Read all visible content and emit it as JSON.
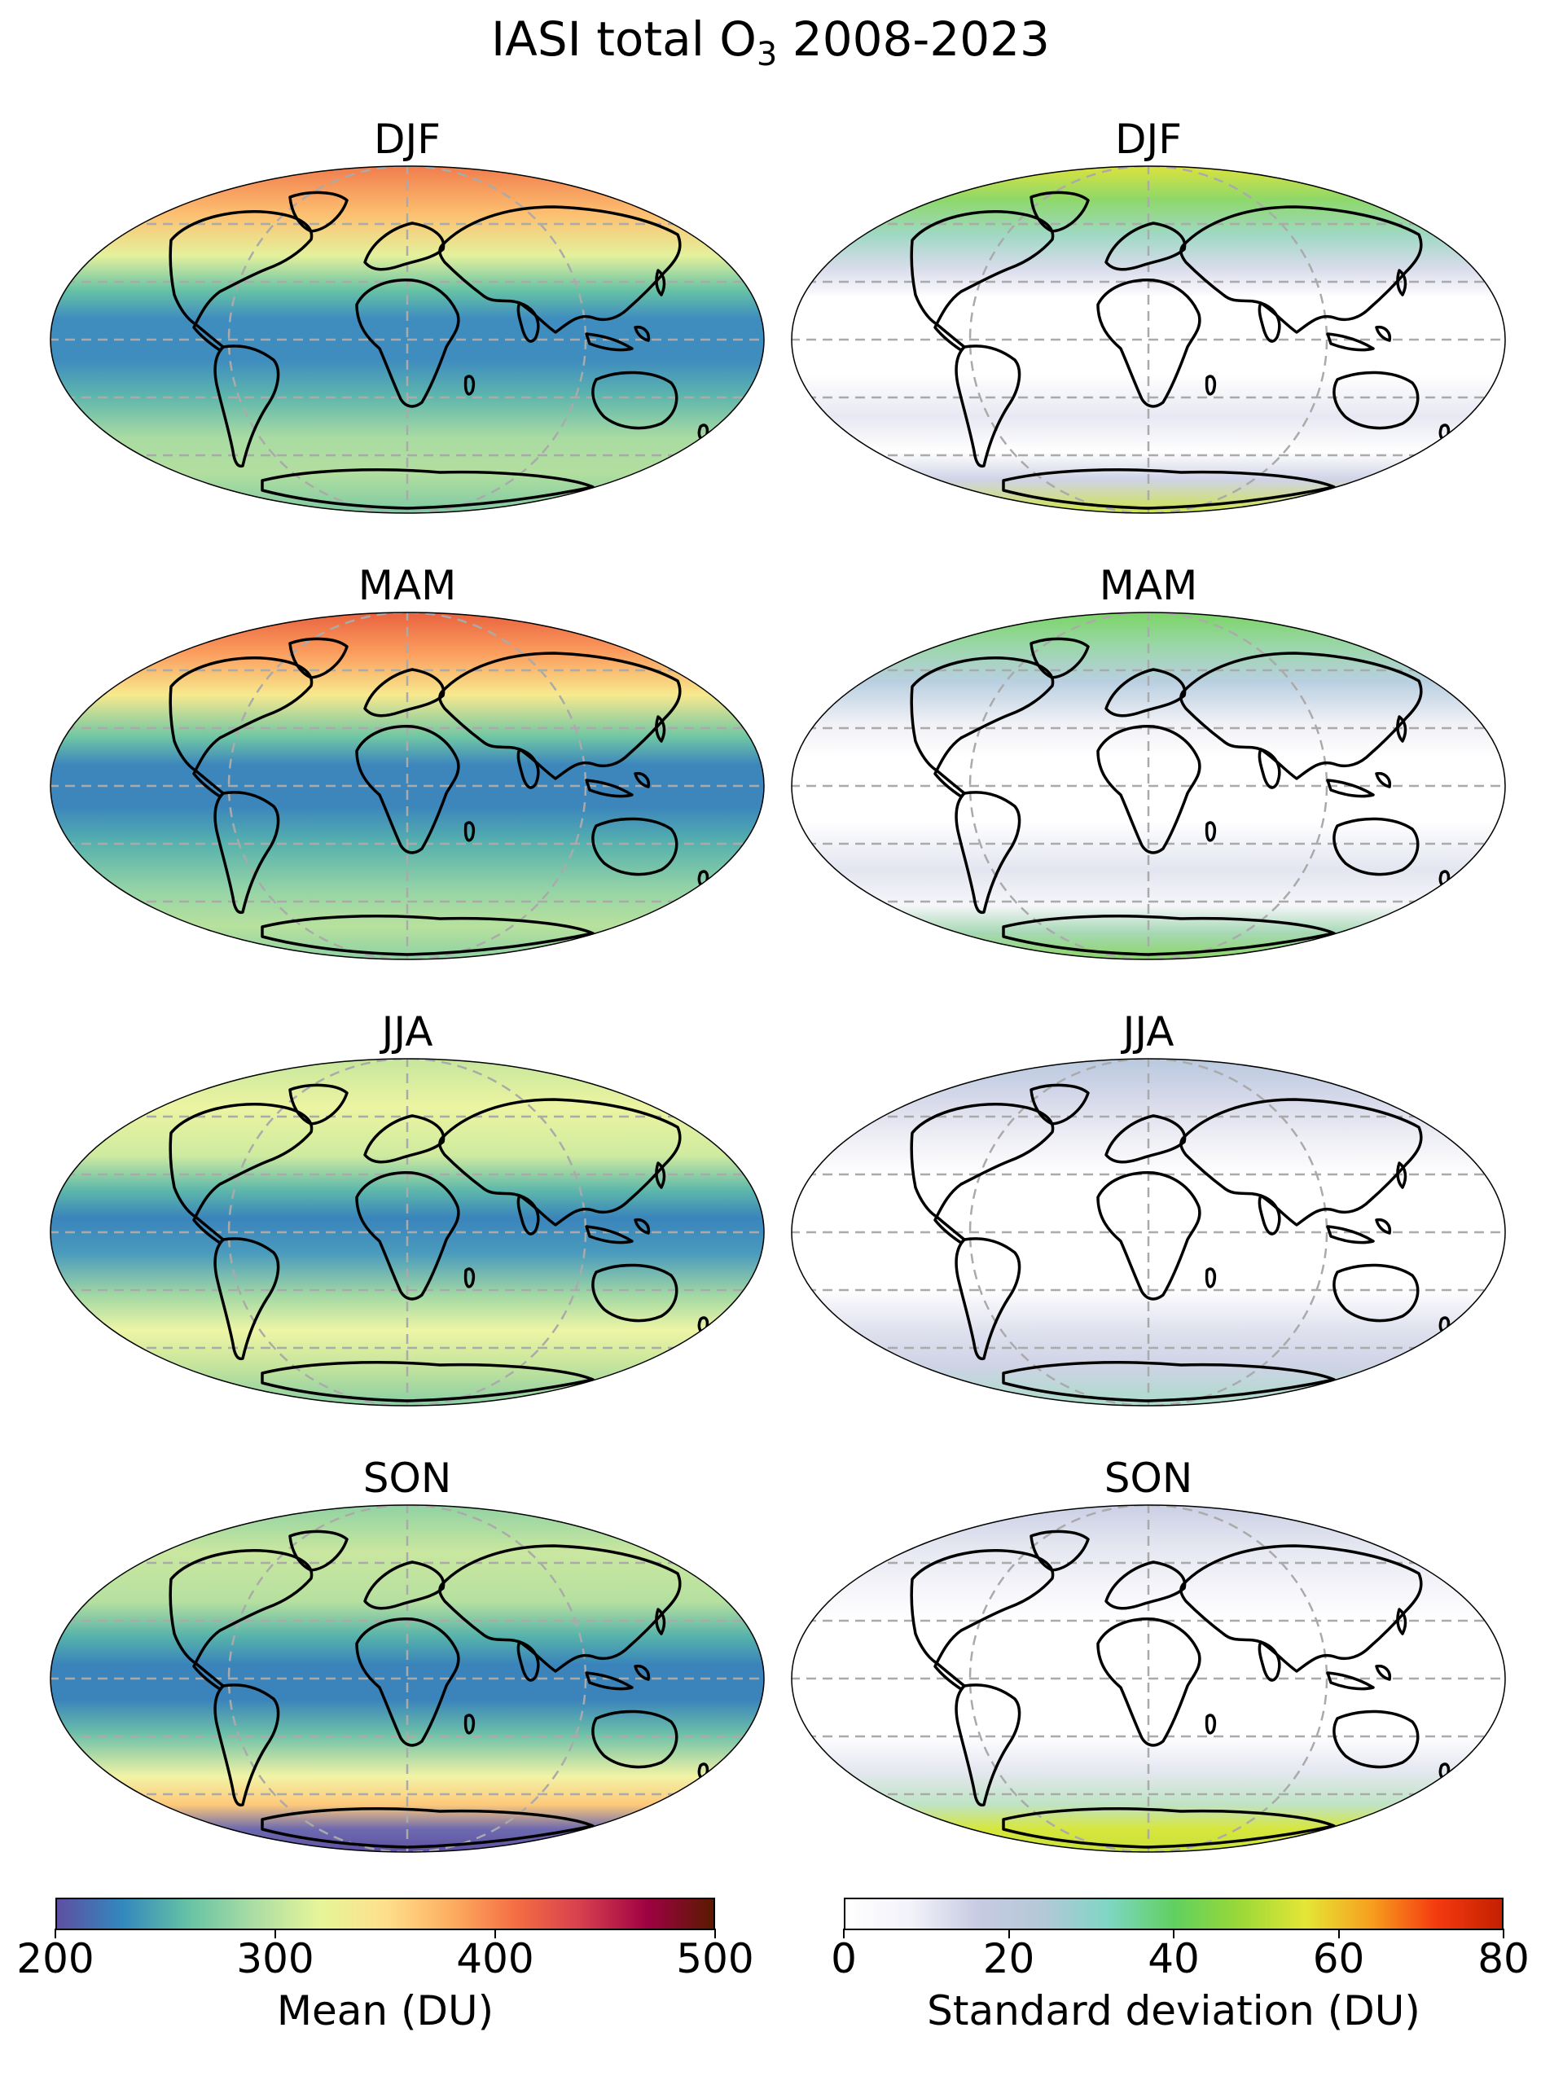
{
  "title": {
    "main": "IASI total O",
    "sub": "3",
    "rest": " 2008-2023"
  },
  "panels": {
    "left": [
      "DJF",
      "MAM",
      "JJA",
      "SON"
    ],
    "right": [
      "DJF",
      "MAM",
      "JJA",
      "SON"
    ]
  },
  "colorbars": {
    "mean": {
      "label": "Mean (DU)",
      "ticks": [
        "200",
        "300",
        "400",
        "500"
      ],
      "range": [
        200,
        500
      ],
      "stops": [
        "#5e4fa2",
        "#3288bd",
        "#66c2a5",
        "#abdda4",
        "#e6f598",
        "#fee08b",
        "#fdae61",
        "#f46d43",
        "#d53e4f",
        "#9e0142",
        "#5a1a00"
      ]
    },
    "std": {
      "label": "Standard deviation (DU)",
      "ticks": [
        "0",
        "20",
        "40",
        "60",
        "80"
      ],
      "range": [
        0,
        80
      ],
      "stops": [
        "#ffffff",
        "#f2f2fa",
        "#c8cbe2",
        "#b4c8d8",
        "#7fd6c4",
        "#60d060",
        "#9ad838",
        "#e4e636",
        "#f7a01e",
        "#f43a10",
        "#c42000"
      ]
    }
  },
  "colors": {
    "mean_polar_north_high": "#f07048",
    "mean_midlat": "#e8f2a0",
    "mean_tropics": "#3a82b8",
    "std_background": "#ffffff",
    "std_highlat": "#9ad88c",
    "coastline": "#000000",
    "gridline": "#aaaaaa"
  }
}
